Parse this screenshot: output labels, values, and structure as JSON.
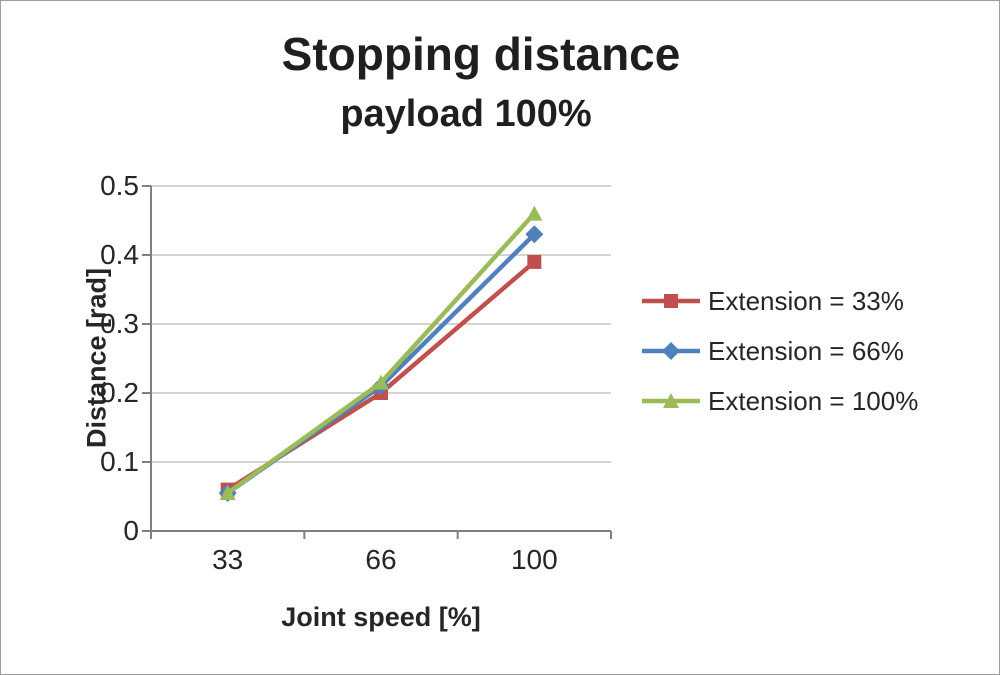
{
  "chart_data": {
    "type": "line",
    "title": "Stopping distance",
    "subtitle": "payload 100%",
    "xlabel": "Joint speed [%]",
    "ylabel": "Distance [rad]",
    "categories": [
      "33",
      "66",
      "100"
    ],
    "yticks": [
      0,
      0.1,
      0.2,
      0.3,
      0.4,
      0.5
    ],
    "ylim": [
      0,
      0.5
    ],
    "grid": true,
    "legend_position": "right",
    "series": [
      {
        "name": "Extension = 33%",
        "color": "#c0504d",
        "marker": "square",
        "values": [
          0.06,
          0.2,
          0.39
        ]
      },
      {
        "name": "Extension = 66%",
        "color": "#4f81bd",
        "marker": "diamond",
        "values": [
          0.055,
          0.21,
          0.43
        ]
      },
      {
        "name": "Extension = 100%",
        "color": "#9bbb59",
        "marker": "triangle",
        "values": [
          0.055,
          0.215,
          0.46
        ]
      }
    ],
    "colors": {
      "gridline": "#c6c6c6",
      "axis": "#808080",
      "text": "#262626"
    }
  }
}
